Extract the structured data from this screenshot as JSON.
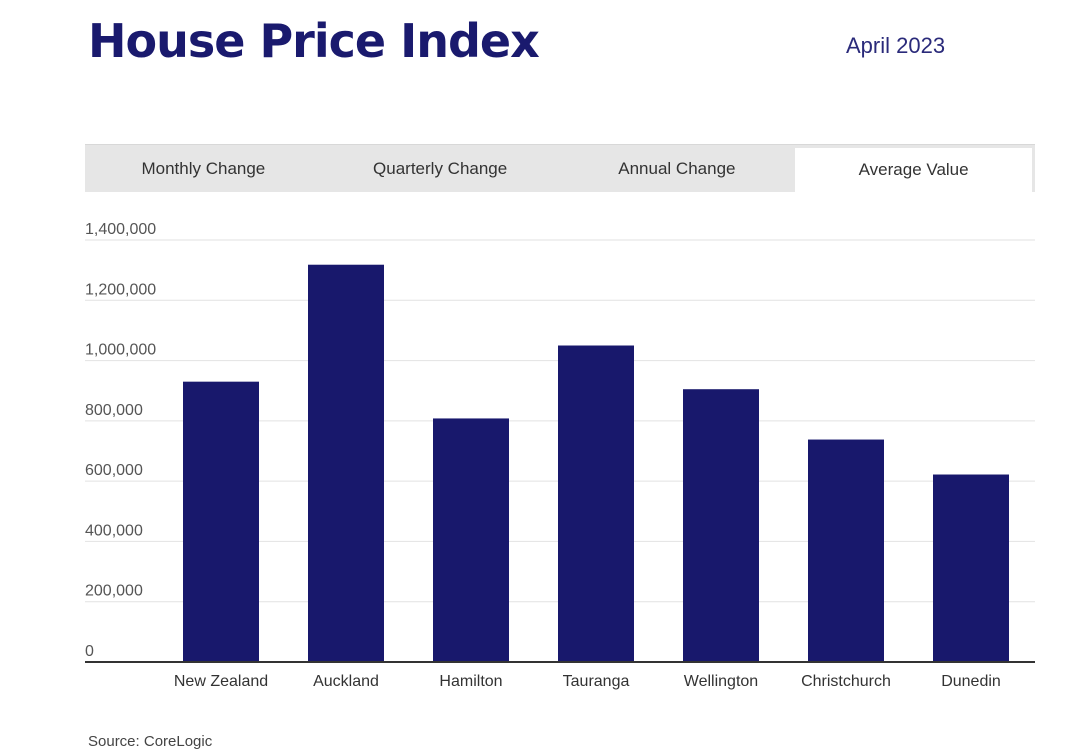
{
  "header": {
    "title": "House Price Index",
    "date": "April 2023"
  },
  "tabs": [
    {
      "label": "Monthly Change",
      "active": false
    },
    {
      "label": "Quarterly Change",
      "active": false
    },
    {
      "label": "Annual Change",
      "active": false
    },
    {
      "label": "Average Value",
      "active": true
    }
  ],
  "chart_data": {
    "type": "bar",
    "categories": [
      "New Zealand",
      "Auckland",
      "Hamilton",
      "Tauranga",
      "Wellington",
      "Christchurch",
      "Dunedin"
    ],
    "values": [
      930000,
      1318000,
      808000,
      1050000,
      905000,
      738000,
      622000
    ],
    "yticks": [
      "0",
      "200,000",
      "400,000",
      "600,000",
      "800,000",
      "1,000,000",
      "1,200,000",
      "1,400,000"
    ],
    "ylim": [
      0,
      1400000
    ],
    "bar_color": "#18186c",
    "grid": true
  },
  "footer": {
    "source": "Source: CoreLogic"
  }
}
